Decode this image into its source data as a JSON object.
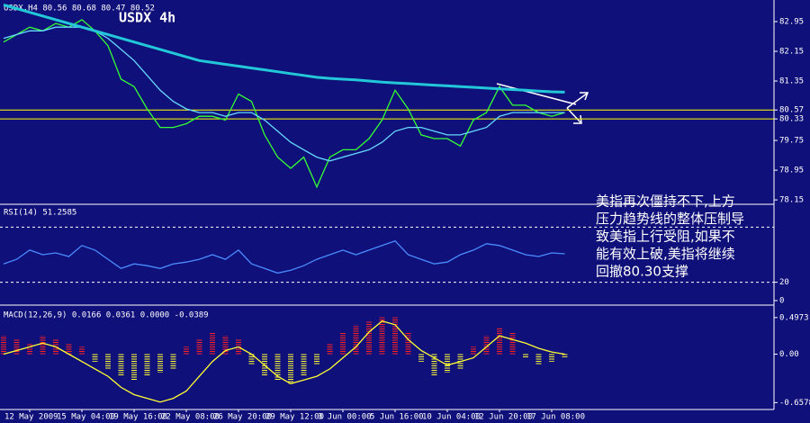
{
  "chart_data": [
    {
      "type": "line",
      "title": "USDX,H4 80.56 80.68 80.47 80.52",
      "subtitle": "USDX 4h",
      "ylim": [
        78.08,
        83.41
      ],
      "yticks": [
        82.95,
        82.15,
        81.35,
        80.57,
        80.33,
        79.75,
        78.95,
        78.15
      ],
      "levels": [
        80.57,
        80.33
      ],
      "level_color": "#ffff00",
      "series": [
        {
          "color": "#33ff33",
          "values": [
            82.4,
            82.6,
            82.8,
            82.7,
            82.9,
            82.8,
            83.0,
            82.7,
            82.3,
            81.4,
            81.2,
            80.6,
            80.1,
            80.1,
            80.2,
            80.4,
            80.4,
            80.3,
            81.0,
            80.8,
            79.9,
            79.3,
            79.0,
            79.3,
            78.5,
            79.3,
            79.5,
            79.5,
            79.8,
            80.3,
            81.1,
            80.6,
            79.9,
            79.8,
            79.8,
            79.6,
            80.3,
            80.5,
            81.2,
            80.7,
            80.7,
            80.5,
            80.4,
            80.5
          ]
        },
        {
          "color": "#66d9ff",
          "values": [
            82.5,
            82.6,
            82.7,
            82.7,
            82.8,
            82.8,
            82.8,
            82.7,
            82.5,
            82.2,
            81.9,
            81.5,
            81.1,
            80.8,
            80.6,
            80.5,
            80.5,
            80.4,
            80.5,
            80.5,
            80.3,
            80.0,
            79.7,
            79.5,
            79.3,
            79.2,
            79.3,
            79.4,
            79.5,
            79.7,
            80.0,
            80.1,
            80.1,
            80.0,
            79.9,
            79.9,
            80.0,
            80.1,
            80.4,
            80.5,
            80.5,
            80.5,
            80.5,
            80.5
          ]
        },
        {
          "color": "#22c8d8",
          "values": [
            83.4,
            83.3,
            83.2,
            83.1,
            83.0,
            82.9,
            82.8,
            82.7,
            82.6,
            82.5,
            82.4,
            82.3,
            82.2,
            82.1,
            82.0,
            81.9,
            81.85,
            81.8,
            81.75,
            81.7,
            81.65,
            81.6,
            81.55,
            81.5,
            81.45,
            81.42,
            81.4,
            81.38,
            81.35,
            81.32,
            81.3,
            81.28,
            81.26,
            81.24,
            81.22,
            81.2,
            81.18,
            81.16,
            81.14,
            81.12,
            81.1,
            81.08,
            81.06,
            81.05
          ]
        }
      ],
      "annotation": [
        "美指再次僵持不下,上方",
        "压力趋势线的整体压制导",
        "致美指上行受阻,如果不",
        "能有效上破,美指将继续",
        "回撤80.30支撑"
      ]
    },
    {
      "type": "line",
      "title": "RSI(14) 51.2585",
      "ylim": [
        0,
        100
      ],
      "yticks": [
        20,
        0
      ],
      "levels": [
        80,
        20
      ],
      "series": [
        {
          "color": "#4a8cff",
          "values": [
            40,
            45,
            55,
            50,
            52,
            48,
            60,
            55,
            45,
            35,
            40,
            38,
            35,
            40,
            42,
            45,
            50,
            45,
            55,
            40,
            35,
            30,
            33,
            38,
            45,
            50,
            55,
            50,
            55,
            60,
            65,
            50,
            45,
            40,
            42,
            50,
            55,
            62,
            60,
            55,
            50,
            48,
            52,
            51
          ]
        }
      ]
    },
    {
      "type": "macd",
      "title": "MACD(12,26,9) 0.0166 0.0361 0.0000 -0.0389",
      "ylim": [
        -0.69,
        0.63
      ],
      "yticks": [
        {
          "value": 0.4973,
          "label": "0.4973"
        },
        {
          "value": 0,
          "label": "0.00"
        },
        {
          "value": -0.6578,
          "label": "-0.6578"
        }
      ],
      "up_color": "#ff2020",
      "down_color": "#ffff33",
      "categories": [
        null,
        null,
        "12 May 2009",
        null,
        null,
        null,
        "15 May 04:00",
        null,
        null,
        null,
        "19 May 16:00",
        null,
        null,
        null,
        "22 May 08:00",
        null,
        null,
        null,
        "26 May 20:00",
        null,
        null,
        null,
        "29 May 12:00",
        null,
        null,
        null,
        "3 Jun 00:00",
        null,
        null,
        null,
        "5 Jun 16:00",
        null,
        null,
        null,
        "10 Jun 04:00",
        null,
        null,
        null,
        "12 Jun 20:00",
        null,
        null,
        null,
        "17 Jun 08:00",
        null
      ],
      "values": [
        0.25,
        0.2,
        0.15,
        0.25,
        0.2,
        0.15,
        0.1,
        -0.1,
        -0.2,
        -0.3,
        -0.35,
        -0.3,
        -0.25,
        -0.2,
        0.1,
        0.2,
        0.3,
        0.25,
        0.2,
        -0.15,
        -0.3,
        -0.35,
        -0.4,
        -0.3,
        -0.15,
        0.15,
        0.3,
        0.4,
        0.45,
        0.5,
        0.5,
        0.3,
        -0.1,
        -0.3,
        -0.25,
        -0.2,
        0.1,
        0.25,
        0.35,
        0.3,
        -0.05,
        -0.15,
        -0.1,
        -0.04
      ],
      "series": [
        {
          "color": "#ffff33",
          "values": [
            0.0,
            0.05,
            0.1,
            0.15,
            0.1,
            0.0,
            -0.1,
            -0.2,
            -0.3,
            -0.45,
            -0.55,
            -0.6,
            -0.65,
            -0.6,
            -0.5,
            -0.3,
            -0.1,
            0.05,
            0.1,
            0.0,
            -0.15,
            -0.3,
            -0.4,
            -0.35,
            -0.3,
            -0.2,
            -0.05,
            0.1,
            0.3,
            0.45,
            0.4,
            0.2,
            0.05,
            -0.05,
            -0.15,
            -0.1,
            -0.05,
            0.1,
            0.25,
            0.2,
            0.15,
            0.08,
            0.03,
            0.0
          ]
        }
      ]
    }
  ]
}
